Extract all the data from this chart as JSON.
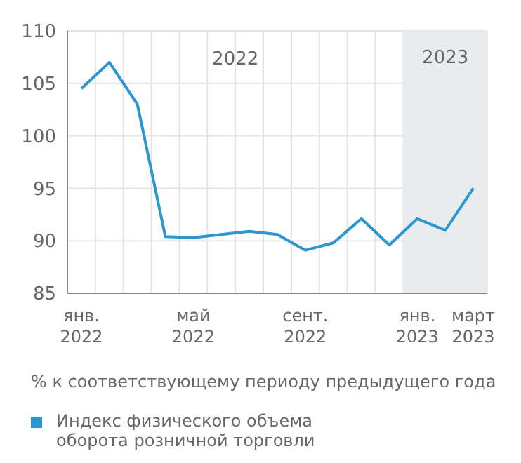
{
  "chart_data": {
    "type": "line",
    "categories": [
      "янв. 2022",
      null,
      null,
      null,
      "май 2022",
      null,
      null,
      null,
      "сент. 2022",
      null,
      null,
      null,
      "янв. 2023",
      null,
      "март 2023"
    ],
    "series": [
      {
        "name": "Индекс физического объема оборота розничной торговли",
        "color": "#2b96d0",
        "values": [
          104.5,
          107,
          103,
          90.4,
          90.3,
          90.6,
          90.9,
          90.6,
          89.1,
          89.8,
          92.1,
          89.6,
          92.1,
          91.0,
          95.0
        ]
      }
    ],
    "ylim": [
      85,
      110
    ],
    "yticks": [
      85,
      90,
      95,
      100,
      105,
      110
    ],
    "grid": true,
    "marker": "none",
    "line_style": "solid",
    "legend": "bottom",
    "bands": [
      {
        "axis": "x",
        "from": "янв. 2023",
        "to": "март 2023",
        "label": "2023",
        "color": "#e9ecee"
      }
    ],
    "annotations": [
      "2022",
      "% к соответствующему периоду предыдущего года"
    ]
  }
}
